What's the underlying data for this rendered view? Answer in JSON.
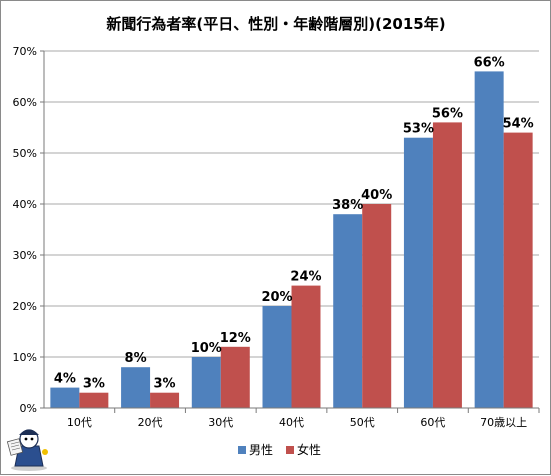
{
  "chart_data": {
    "type": "bar",
    "title": "新聞行為者率(平日、性別・年齢階層別)(2015年)",
    "categories": [
      "10代",
      "20代",
      "30代",
      "40代",
      "50代",
      "60代",
      "70歳以上"
    ],
    "series": [
      {
        "name": "男性",
        "values": [
          4,
          8,
          10,
          20,
          38,
          53,
          66
        ],
        "labels": [
          "4%",
          "8%",
          "10%",
          "20%",
          "38%",
          "53%",
          "66%"
        ],
        "color": "#4f81bd"
      },
      {
        "name": "女性",
        "values": [
          3,
          3,
          12,
          24,
          40,
          56,
          54
        ],
        "labels": [
          "3%",
          "3%",
          "12%",
          "24%",
          "40%",
          "56%",
          "54%"
        ],
        "color": "#c0504d"
      }
    ],
    "ylim": [
      0,
      70
    ],
    "yticks": [
      "0%",
      "10%",
      "20%",
      "30%",
      "40%",
      "50%",
      "60%",
      "70%"
    ],
    "grid": true,
    "legend_position": "bottom-center"
  }
}
